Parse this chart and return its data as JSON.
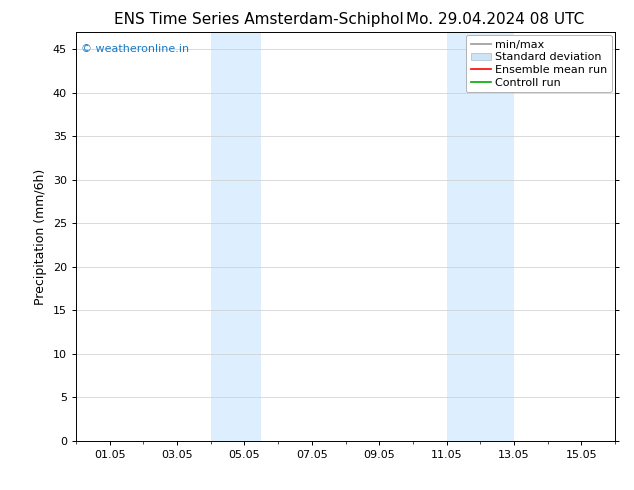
{
  "title_left": "ENS Time Series Amsterdam-Schiphol",
  "title_right": "Mo. 29.04.2024 08 UTC",
  "ylabel": "Precipitation (mm/6h)",
  "xlim": [
    0,
    16
  ],
  "ylim": [
    0,
    47
  ],
  "yticks": [
    0,
    5,
    10,
    15,
    20,
    25,
    30,
    35,
    40,
    45
  ],
  "xtick_labels": [
    "01.05",
    "03.05",
    "05.05",
    "07.05",
    "09.05",
    "11.05",
    "13.05",
    "15.05"
  ],
  "xtick_positions": [
    1,
    3,
    5,
    7,
    9,
    11,
    13,
    15
  ],
  "shaded_bands": [
    {
      "xmin": 4.0,
      "xmax": 5.5
    },
    {
      "xmin": 11.0,
      "xmax": 13.0
    }
  ],
  "shade_color": "#ddeeff",
  "background_color": "#ffffff",
  "watermark_text": "© weatheronline.in",
  "watermark_color": "#1a7abf",
  "legend_labels": [
    "min/max",
    "Standard deviation",
    "Ensemble mean run",
    "Controll run"
  ],
  "legend_colors_line": [
    "#999999",
    null,
    "#ff0000",
    "#00aa00"
  ],
  "legend_patch_color": "#cce4f5",
  "title_fontsize": 11,
  "tick_fontsize": 8,
  "ylabel_fontsize": 9,
  "watermark_fontsize": 8,
  "legend_fontsize": 8
}
